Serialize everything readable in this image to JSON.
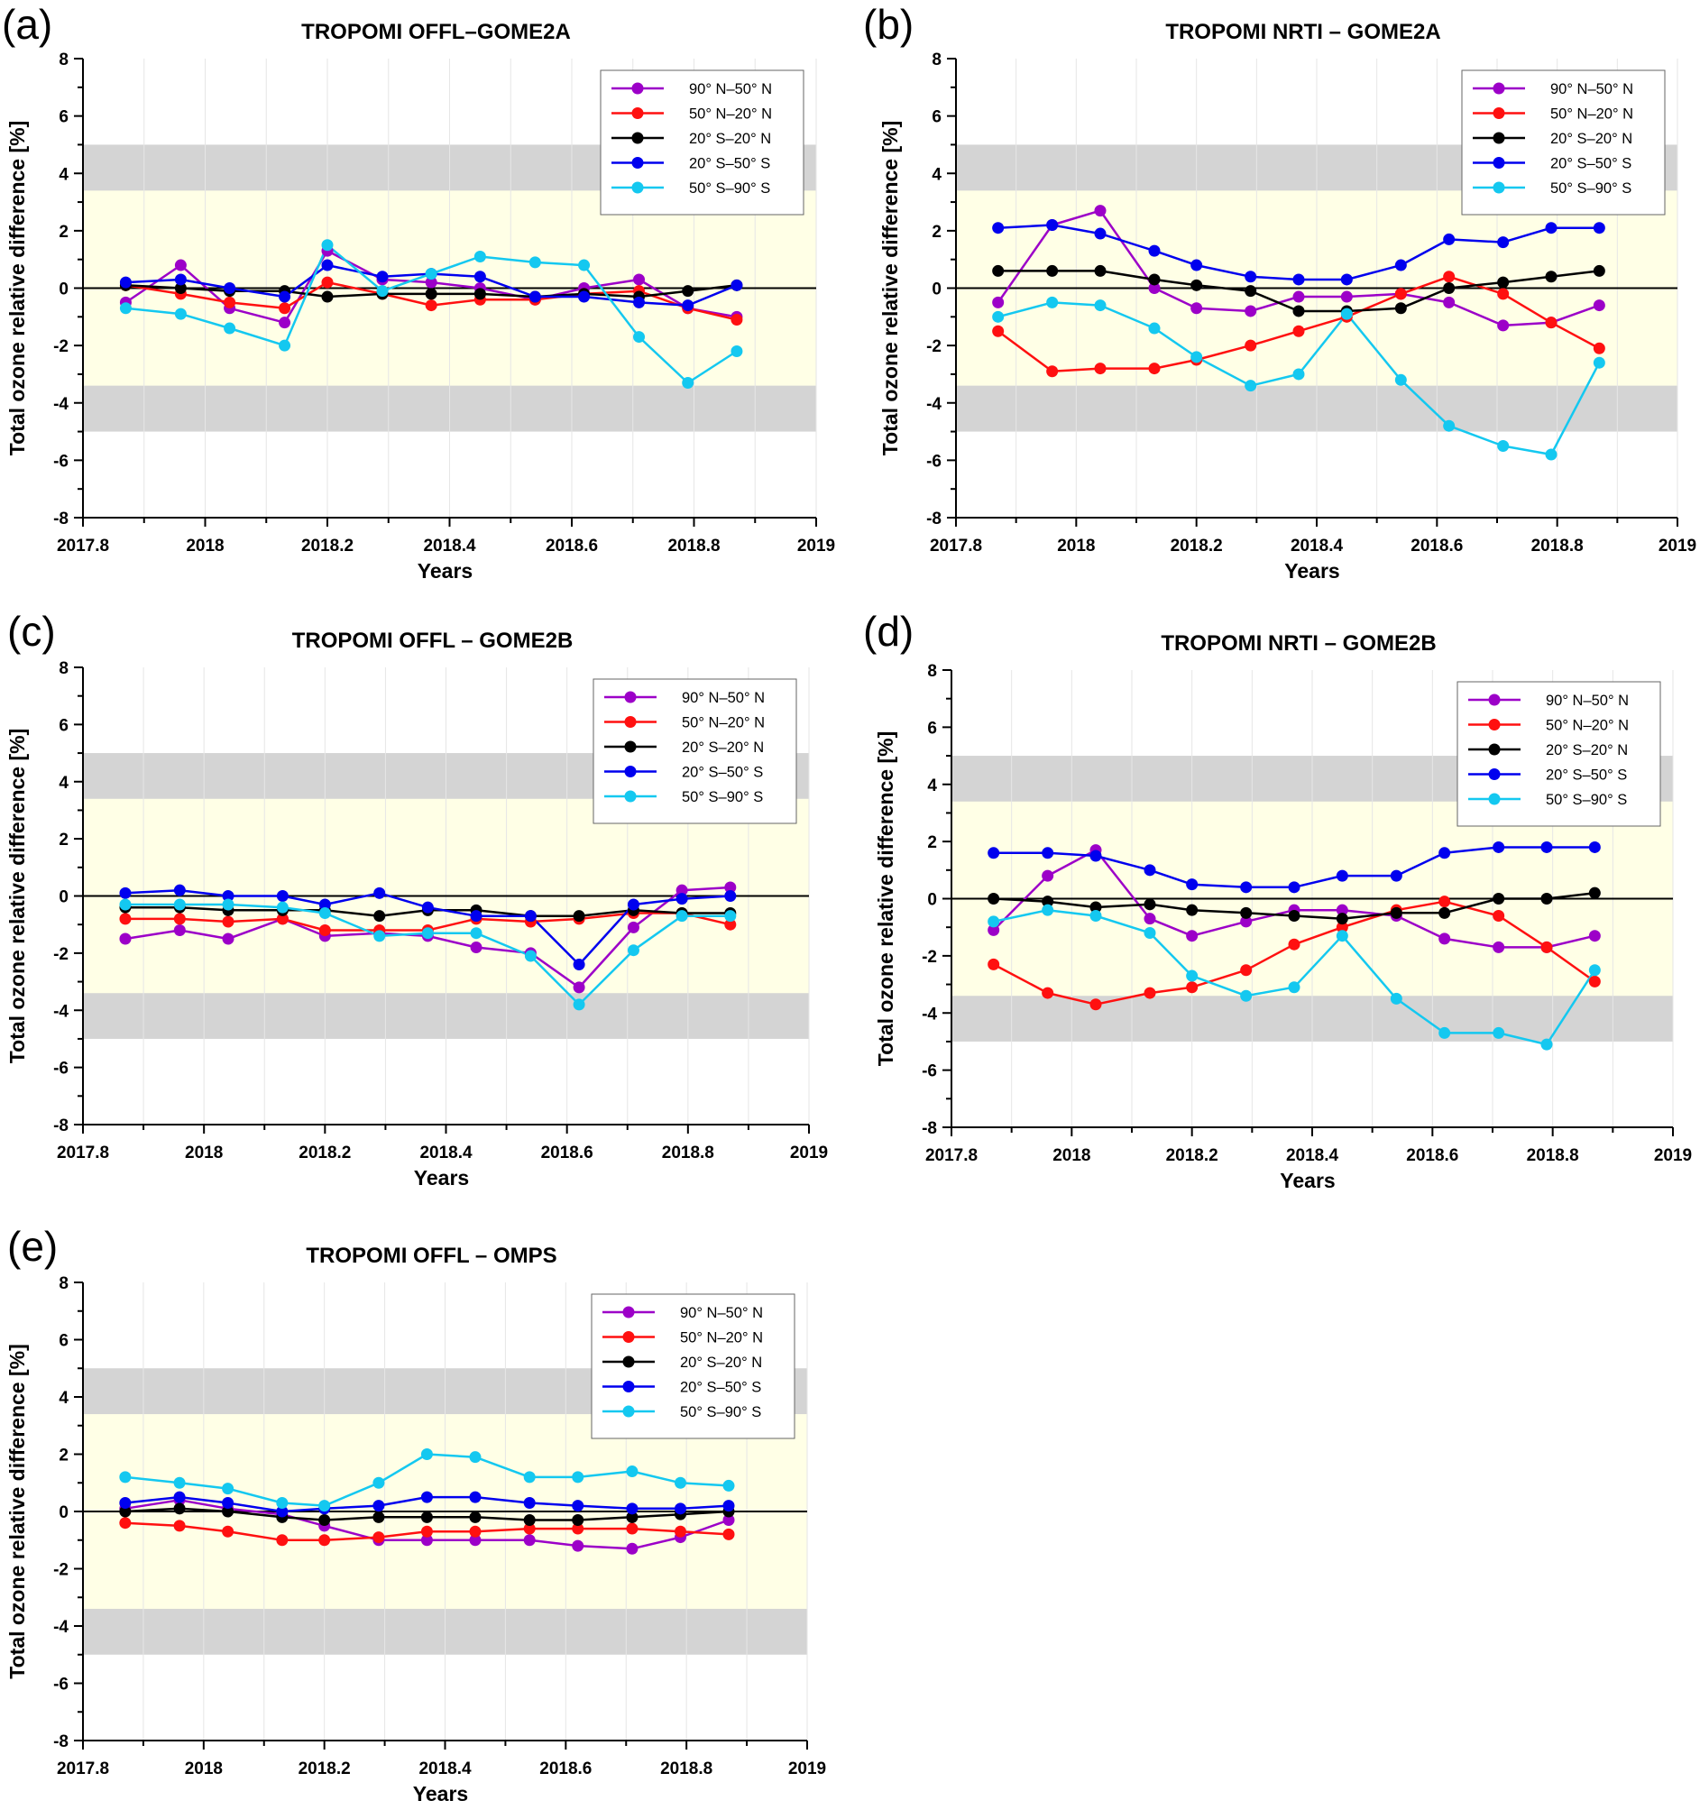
{
  "style": {
    "colors": {
      "series": [
        "#9c00c8",
        "#ff1010",
        "#000000",
        "#0000ee",
        "#14c8f0"
      ],
      "band_outer": "#d4d4d4",
      "band_inner": "#ffffe6",
      "grid": "#e6e6e6",
      "zero_line": "#000000"
    },
    "legend_placement": "top-right"
  },
  "chart_data": [
    {
      "panel": "(a)",
      "type": "line",
      "title": "TROPOMI OFFL–GOME2A",
      "xlabel": "Years",
      "ylabel": "Total ozone relative difference [%]",
      "xlim": [
        2017.8,
        2019
      ],
      "ylim": [
        -8,
        8
      ],
      "xticks": [
        "2017.8",
        "2018",
        "2018.2",
        "2018.4",
        "2018.6",
        "2018.8",
        "2019"
      ],
      "yticks": [
        "8",
        "6",
        "4",
        "2",
        "0",
        "-2",
        "-4",
        "-6",
        "-8"
      ],
      "grid": true,
      "bands": {
        "inner": [
          -3.4,
          3.4
        ],
        "outer": [
          -5,
          5
        ]
      },
      "x": [
        2017.87,
        2017.96,
        2018.04,
        2018.13,
        2018.2,
        2018.29,
        2018.37,
        2018.45,
        2018.54,
        2018.62,
        2018.71,
        2018.79,
        2018.87
      ],
      "series": [
        {
          "name": "90° N–50° N",
          "values": [
            -0.5,
            0.8,
            -0.7,
            -1.2,
            1.3,
            0.3,
            0.2,
            0.0,
            -0.4,
            0.0,
            0.3,
            -0.7,
            -1.0
          ]
        },
        {
          "name": "50° N–20° N",
          "values": [
            0.1,
            -0.2,
            -0.5,
            -0.7,
            0.2,
            -0.2,
            -0.6,
            -0.4,
            -0.4,
            -0.2,
            -0.1,
            -0.7,
            -1.1
          ]
        },
        {
          "name": "20° S–20° N",
          "values": [
            0.1,
            0.0,
            -0.1,
            -0.1,
            -0.3,
            -0.2,
            -0.2,
            -0.2,
            -0.3,
            -0.2,
            -0.3,
            -0.1,
            0.1
          ]
        },
        {
          "name": "20° S–50° S",
          "values": [
            0.2,
            0.3,
            0.0,
            -0.3,
            0.8,
            0.4,
            0.5,
            0.4,
            -0.3,
            -0.3,
            -0.5,
            -0.6,
            0.1
          ]
        },
        {
          "name": "50° S–90° S",
          "values": [
            -0.7,
            -0.9,
            -1.4,
            -2.0,
            1.5,
            -0.1,
            0.5,
            1.1,
            0.9,
            0.8,
            -1.7,
            -3.3,
            -2.2
          ]
        }
      ]
    },
    {
      "panel": "(b)",
      "type": "line",
      "title": "TROPOMI NRTI – GOME2A",
      "xlabel": "Years",
      "ylabel": "Total ozone relative difference [%]",
      "xlim": [
        2017.8,
        2019
      ],
      "ylim": [
        -8,
        8
      ],
      "xticks": [
        "2017.8",
        "2018",
        "2018.2",
        "2018.4",
        "2018.6",
        "2018.8",
        "2019"
      ],
      "yticks": [
        "8",
        "6",
        "4",
        "2",
        "0",
        "-2",
        "-4",
        "-6",
        "-8"
      ],
      "grid": true,
      "bands": {
        "inner": [
          -3.4,
          3.4
        ],
        "outer": [
          -5,
          5
        ]
      },
      "x": [
        2017.87,
        2017.96,
        2018.04,
        2018.13,
        2018.2,
        2018.29,
        2018.37,
        2018.45,
        2018.54,
        2018.62,
        2018.71,
        2018.79,
        2018.87
      ],
      "series": [
        {
          "name": "90° N–50° N",
          "values": [
            -0.5,
            2.2,
            2.7,
            0.0,
            -0.7,
            -0.8,
            -0.3,
            -0.3,
            -0.2,
            -0.5,
            -1.3,
            -1.2,
            -0.6
          ]
        },
        {
          "name": "50° N–20° N",
          "values": [
            -1.5,
            -2.9,
            -2.8,
            -2.8,
            -2.5,
            -2.0,
            -1.5,
            -1.0,
            -0.2,
            0.4,
            -0.2,
            -1.2,
            -2.1
          ]
        },
        {
          "name": "20° S–20° N",
          "values": [
            0.6,
            0.6,
            0.6,
            0.3,
            0.1,
            -0.1,
            -0.8,
            -0.8,
            -0.7,
            0.0,
            0.2,
            0.4,
            0.6
          ]
        },
        {
          "name": "20° S–50° S",
          "values": [
            2.1,
            2.2,
            1.9,
            1.3,
            0.8,
            0.4,
            0.3,
            0.3,
            0.8,
            1.7,
            1.6,
            2.1,
            2.1
          ]
        },
        {
          "name": "50° S–90° S",
          "values": [
            -1.0,
            -0.5,
            -0.6,
            -1.4,
            -2.4,
            -3.4,
            -3.0,
            -0.9,
            -3.2,
            -4.8,
            -5.5,
            -5.8,
            -2.6
          ]
        }
      ]
    },
    {
      "panel": "(c)",
      "type": "line",
      "title": "TROPOMI OFFL – GOME2B",
      "xlabel": "Years",
      "ylabel": "Total ozone relative difference [%]",
      "xlim": [
        2017.8,
        2019
      ],
      "ylim": [
        -8,
        8
      ],
      "xticks": [
        "2017.8",
        "2018",
        "2018.2",
        "2018.4",
        "2018.6",
        "2018.8",
        "2019"
      ],
      "yticks": [
        "8",
        "6",
        "4",
        "2",
        "0",
        "-2",
        "-4",
        "-6",
        "-8"
      ],
      "grid": true,
      "bands": {
        "inner": [
          -3.4,
          3.4
        ],
        "outer": [
          -5,
          5
        ]
      },
      "x": [
        2017.87,
        2017.96,
        2018.04,
        2018.13,
        2018.2,
        2018.29,
        2018.37,
        2018.45,
        2018.54,
        2018.62,
        2018.71,
        2018.79,
        2018.87
      ],
      "series": [
        {
          "name": "90° N–50° N",
          "values": [
            -1.5,
            -1.2,
            -1.5,
            -0.8,
            -1.4,
            -1.3,
            -1.4,
            -1.8,
            -2.0,
            -3.2,
            -1.1,
            0.2,
            0.3
          ]
        },
        {
          "name": "50° N–20° N",
          "values": [
            -0.8,
            -0.8,
            -0.9,
            -0.8,
            -1.2,
            -1.2,
            -1.2,
            -0.8,
            -0.9,
            -0.8,
            -0.6,
            -0.6,
            -1.0
          ]
        },
        {
          "name": "20° S–20° N",
          "values": [
            -0.4,
            -0.4,
            -0.5,
            -0.5,
            -0.5,
            -0.7,
            -0.5,
            -0.5,
            -0.7,
            -0.7,
            -0.5,
            -0.6,
            -0.6
          ]
        },
        {
          "name": "20° S–50° S",
          "values": [
            0.1,
            0.2,
            0.0,
            0.0,
            -0.3,
            0.1,
            -0.4,
            -0.7,
            -0.7,
            -2.4,
            -0.3,
            -0.1,
            0.0
          ]
        },
        {
          "name": "50° S–90° S",
          "values": [
            -0.3,
            -0.3,
            -0.3,
            -0.4,
            -0.6,
            -1.4,
            -1.3,
            -1.3,
            -2.1,
            -3.8,
            -1.9,
            -0.7,
            -0.7
          ]
        }
      ]
    },
    {
      "panel": "(d)",
      "type": "line",
      "title": "TROPOMI NRTI – GOME2B",
      "xlabel": "Years",
      "ylabel": "Total ozone relative difference [%]",
      "xlim": [
        2017.8,
        2019
      ],
      "ylim": [
        -8,
        8
      ],
      "xticks": [
        "2017.8",
        "2018",
        "2018.2",
        "2018.4",
        "2018.6",
        "2018.8",
        "2019"
      ],
      "yticks": [
        "8",
        "6",
        "4",
        "2",
        "0",
        "-2",
        "-4",
        "-6",
        "-8"
      ],
      "grid": true,
      "bands": {
        "inner": [
          -3.4,
          3.4
        ],
        "outer": [
          -5,
          5
        ]
      },
      "x": [
        2017.87,
        2017.96,
        2018.04,
        2018.13,
        2018.2,
        2018.29,
        2018.37,
        2018.45,
        2018.54,
        2018.62,
        2018.71,
        2018.79,
        2018.87
      ],
      "series": [
        {
          "name": "90° N–50° N",
          "values": [
            -1.1,
            0.8,
            1.7,
            -0.7,
            -1.3,
            -0.8,
            -0.4,
            -0.4,
            -0.6,
            -1.4,
            -1.7,
            -1.7,
            -1.3
          ]
        },
        {
          "name": "50° N–20° N",
          "values": [
            -2.3,
            -3.3,
            -3.7,
            -3.3,
            -3.1,
            -2.5,
            -1.6,
            -1.0,
            -0.4,
            -0.1,
            -0.6,
            -1.7,
            -2.9
          ]
        },
        {
          "name": "20° S–20° N",
          "values": [
            0.0,
            -0.1,
            -0.3,
            -0.2,
            -0.4,
            -0.5,
            -0.6,
            -0.7,
            -0.5,
            -0.5,
            0.0,
            0.0,
            0.2
          ]
        },
        {
          "name": "20° S–50° S",
          "values": [
            1.6,
            1.6,
            1.5,
            1.0,
            0.5,
            0.4,
            0.4,
            0.8,
            0.8,
            1.6,
            1.8,
            1.8,
            1.8
          ]
        },
        {
          "name": "50° S–90° S",
          "values": [
            -0.8,
            -0.4,
            -0.6,
            -1.2,
            -2.7,
            -3.4,
            -3.1,
            -1.3,
            -3.5,
            -4.7,
            -4.7,
            -5.1,
            -2.5
          ]
        }
      ]
    },
    {
      "panel": "(e)",
      "type": "line",
      "title": "TROPOMI OFFL – OMPS",
      "xlabel": "Years",
      "ylabel": "Total ozone relative difference [%]",
      "xlim": [
        2017.8,
        2019
      ],
      "ylim": [
        -8,
        8
      ],
      "xticks": [
        "2017.8",
        "2018",
        "2018.2",
        "2018.4",
        "2018.6",
        "2018.8",
        "2019"
      ],
      "yticks": [
        "8",
        "6",
        "4",
        "2",
        "0",
        "-2",
        "-4",
        "-6",
        "-8"
      ],
      "grid": true,
      "bands": {
        "inner": [
          -3.4,
          3.4
        ],
        "outer": [
          -5,
          5
        ]
      },
      "x": [
        2017.87,
        2017.96,
        2018.04,
        2018.13,
        2018.2,
        2018.29,
        2018.37,
        2018.45,
        2018.54,
        2018.62,
        2018.71,
        2018.79,
        2018.87
      ],
      "series": [
        {
          "name": "90° N–50° N",
          "values": [
            0.1,
            0.4,
            0.1,
            -0.1,
            -0.5,
            -1.0,
            -1.0,
            -1.0,
            -1.0,
            -1.2,
            -1.3,
            -0.9,
            -0.3
          ]
        },
        {
          "name": "50° N–20° N",
          "values": [
            -0.4,
            -0.5,
            -0.7,
            -1.0,
            -1.0,
            -0.9,
            -0.7,
            -0.7,
            -0.6,
            -0.6,
            -0.6,
            -0.7,
            -0.8
          ]
        },
        {
          "name": "20° S–20° N",
          "values": [
            0.0,
            0.1,
            0.0,
            -0.2,
            -0.3,
            -0.2,
            -0.2,
            -0.2,
            -0.3,
            -0.3,
            -0.2,
            -0.1,
            0.0
          ]
        },
        {
          "name": "20° S–50° S",
          "values": [
            0.3,
            0.5,
            0.3,
            0.0,
            0.1,
            0.2,
            0.5,
            0.5,
            0.3,
            0.2,
            0.1,
            0.1,
            0.2
          ]
        },
        {
          "name": "50° S–90° S",
          "values": [
            1.2,
            1.0,
            0.8,
            0.3,
            0.2,
            1.0,
            2.0,
            1.9,
            1.2,
            1.2,
            1.4,
            1.0,
            0.9
          ]
        }
      ]
    }
  ]
}
